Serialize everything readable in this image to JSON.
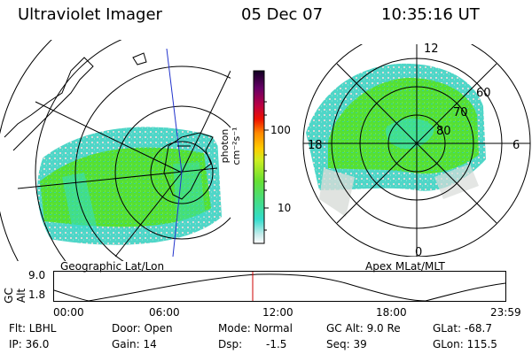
{
  "header": {
    "title": "Ultraviolet Imager",
    "date": "05 Dec 07",
    "time": "10:35:16 UT"
  },
  "geo_panel": {
    "label": "Geographic Lat/Lon"
  },
  "apex_panel": {
    "label": "Apex MLat/MLT",
    "mlt_labels": [
      "12",
      "18",
      "6",
      "0"
    ],
    "mlat_labels": [
      "60",
      "70",
      "80"
    ]
  },
  "colorbar": {
    "unit_label": "photon cm⁻²s⁻¹",
    "ticks": [
      "100",
      "10"
    ]
  },
  "altitude_plot": {
    "ylabel": "GC Alt",
    "yticks": [
      "9.0",
      "1.8"
    ],
    "xticks": [
      "00:00",
      "06:00",
      "12:00",
      "18:00",
      "23:59"
    ]
  },
  "info": {
    "row1": {
      "filter": "Flt: LBHL",
      "door": "Door: Open",
      "mode": "Mode: Normal",
      "gc_alt": "GC Alt: 9.0 Re",
      "glat": "GLat: -68.7"
    },
    "row2": {
      "ip": "IP: 36.0",
      "gain": "Gain: 14",
      "dsp_label": "Dsp:",
      "dsp_value": "-1.5",
      "seq": "Seq: 39",
      "glon": "GLon: 115.5"
    }
  },
  "colors": {
    "aurora_green": "#55e033",
    "aurora_cyan": "#33ddcc",
    "marker_red": "#cc0000"
  }
}
